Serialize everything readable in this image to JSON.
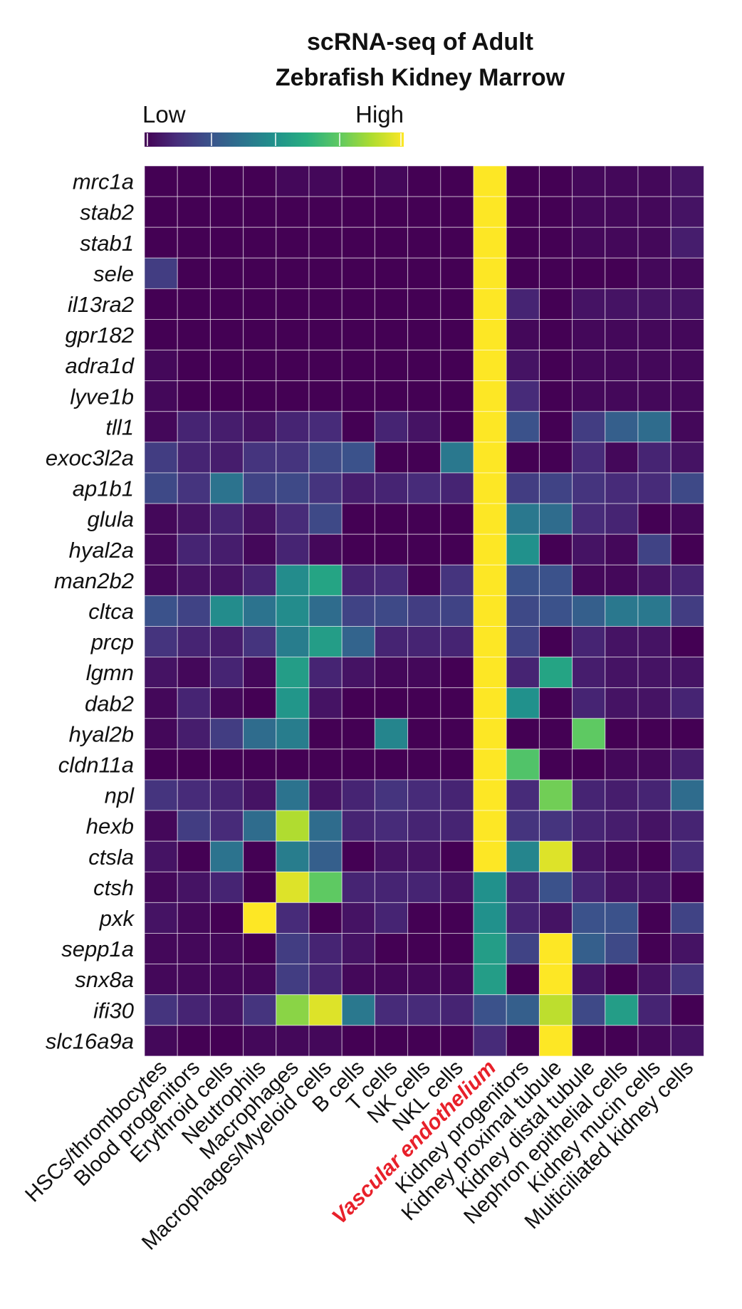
{
  "chart_data": {
    "type": "heatmap",
    "title_lines": [
      "scRNA-seq of Adult",
      "Zebrafish Kidney Marrow"
    ],
    "legend": {
      "low_label": "Low",
      "high_label": "High",
      "colormap": "viridis"
    },
    "highlight_column": "Vascular endothelium",
    "highlight_color": "#e8202a",
    "rows": [
      "mrc1a",
      "stab2",
      "stab1",
      "sele",
      "il13ra2",
      "gpr182",
      "adra1d",
      "lyve1b",
      "tll1",
      "exoc3l2a",
      "ap1b1",
      "glula",
      "hyal2a",
      "man2b2",
      "cltca",
      "prcp",
      "lgmn",
      "dab2",
      "hyal2b",
      "cldn11a",
      "npl",
      "hexb",
      "ctsla",
      "ctsh",
      "pxk",
      "sepp1a",
      "snx8a",
      "ifi30",
      "slc16a9a"
    ],
    "columns": [
      "HSCs/thrombocytes",
      "Blood progenitors",
      "Erythroid cells",
      "Neutrophils",
      "Macrophages",
      "Macrophages/Myeloid cells",
      "B cells",
      "T cells",
      "NK cells",
      "NKL cells",
      "Vascular endothelium",
      "Kidney progenitors",
      "Kidney proximal tubule",
      "Kidney distal tubule",
      "Nephron epithelial cells",
      "Kidney mucin cells",
      "Multiciliated kidney cells"
    ],
    "value_range": [
      0,
      1
    ],
    "values": [
      [
        0.0,
        0.0,
        0.0,
        0.0,
        0.02,
        0.02,
        0.0,
        0.02,
        0.0,
        0.0,
        1.0,
        0.0,
        0.0,
        0.02,
        0.02,
        0.02,
        0.05
      ],
      [
        0.0,
        0.0,
        0.0,
        0.0,
        0.0,
        0.0,
        0.0,
        0.0,
        0.0,
        0.0,
        1.0,
        0.0,
        0.0,
        0.02,
        0.02,
        0.02,
        0.05
      ],
      [
        0.0,
        0.0,
        0.0,
        0.0,
        0.0,
        0.0,
        0.0,
        0.0,
        0.0,
        0.0,
        1.0,
        0.0,
        0.0,
        0.02,
        0.02,
        0.02,
        0.08
      ],
      [
        0.18,
        0.0,
        0.0,
        0.0,
        0.0,
        0.0,
        0.0,
        0.0,
        0.0,
        0.0,
        1.0,
        0.0,
        0.0,
        0.0,
        0.0,
        0.02,
        0.02
      ],
      [
        0.0,
        0.0,
        0.0,
        0.0,
        0.0,
        0.0,
        0.0,
        0.0,
        0.0,
        0.0,
        1.0,
        0.1,
        0.0,
        0.05,
        0.05,
        0.05,
        0.05
      ],
      [
        0.0,
        0.0,
        0.0,
        0.0,
        0.0,
        0.0,
        0.0,
        0.0,
        0.0,
        0.0,
        1.0,
        0.02,
        0.0,
        0.02,
        0.02,
        0.02,
        0.02
      ],
      [
        0.02,
        0.0,
        0.0,
        0.0,
        0.0,
        0.0,
        0.0,
        0.0,
        0.0,
        0.0,
        1.0,
        0.05,
        0.0,
        0.02,
        0.02,
        0.02,
        0.02
      ],
      [
        0.02,
        0.0,
        0.0,
        0.0,
        0.0,
        0.0,
        0.0,
        0.0,
        0.0,
        0.0,
        1.0,
        0.12,
        0.0,
        0.02,
        0.02,
        0.02,
        0.02
      ],
      [
        0.02,
        0.1,
        0.08,
        0.05,
        0.1,
        0.12,
        0.0,
        0.1,
        0.05,
        0.0,
        1.0,
        0.25,
        0.0,
        0.18,
        0.3,
        0.35,
        0.02
      ],
      [
        0.18,
        0.1,
        0.08,
        0.15,
        0.15,
        0.22,
        0.25,
        0.0,
        0.0,
        0.4,
        1.0,
        0.0,
        0.0,
        0.12,
        0.02,
        0.1,
        0.05
      ],
      [
        0.22,
        0.15,
        0.38,
        0.2,
        0.22,
        0.15,
        0.08,
        0.1,
        0.12,
        0.1,
        1.0,
        0.18,
        0.2,
        0.15,
        0.12,
        0.12,
        0.22
      ],
      [
        0.02,
        0.05,
        0.1,
        0.05,
        0.12,
        0.22,
        0.0,
        0.0,
        0.0,
        0.0,
        1.0,
        0.4,
        0.35,
        0.12,
        0.1,
        0.0,
        0.02
      ],
      [
        0.02,
        0.1,
        0.08,
        0.02,
        0.1,
        0.02,
        0.0,
        0.0,
        0.0,
        0.0,
        1.0,
        0.5,
        0.0,
        0.05,
        0.02,
        0.2,
        0.0
      ],
      [
        0.02,
        0.05,
        0.05,
        0.1,
        0.48,
        0.58,
        0.1,
        0.12,
        0.0,
        0.15,
        1.0,
        0.25,
        0.25,
        0.02,
        0.02,
        0.05,
        0.1
      ],
      [
        0.25,
        0.2,
        0.48,
        0.38,
        0.48,
        0.35,
        0.2,
        0.22,
        0.18,
        0.2,
        1.0,
        0.22,
        0.25,
        0.3,
        0.4,
        0.4,
        0.18
      ],
      [
        0.15,
        0.1,
        0.08,
        0.15,
        0.42,
        0.55,
        0.32,
        0.1,
        0.1,
        0.1,
        1.0,
        0.2,
        0.0,
        0.1,
        0.05,
        0.05,
        0.0
      ],
      [
        0.05,
        0.02,
        0.1,
        0.02,
        0.55,
        0.1,
        0.05,
        0.02,
        0.02,
        0.0,
        1.0,
        0.1,
        0.58,
        0.08,
        0.05,
        0.05,
        0.05
      ],
      [
        0.02,
        0.1,
        0.02,
        0.0,
        0.52,
        0.05,
        0.0,
        0.0,
        0.0,
        0.0,
        1.0,
        0.5,
        0.0,
        0.1,
        0.05,
        0.05,
        0.1
      ],
      [
        0.02,
        0.08,
        0.18,
        0.35,
        0.42,
        0.0,
        0.0,
        0.45,
        0.0,
        0.0,
        1.0,
        0.0,
        0.0,
        0.75,
        0.0,
        0.0,
        0.0
      ],
      [
        0.0,
        0.0,
        0.0,
        0.0,
        0.0,
        0.0,
        0.0,
        0.0,
        0.0,
        0.0,
        1.0,
        0.72,
        0.0,
        0.0,
        0.02,
        0.02,
        0.08
      ],
      [
        0.15,
        0.12,
        0.1,
        0.05,
        0.38,
        0.05,
        0.1,
        0.15,
        0.12,
        0.1,
        1.0,
        0.12,
        0.78,
        0.1,
        0.08,
        0.1,
        0.35
      ],
      [
        0.02,
        0.18,
        0.12,
        0.35,
        0.88,
        0.35,
        0.1,
        0.12,
        0.1,
        0.1,
        1.0,
        0.15,
        0.15,
        0.1,
        0.08,
        0.05,
        0.1
      ],
      [
        0.05,
        0.0,
        0.38,
        0.0,
        0.42,
        0.3,
        0.0,
        0.05,
        0.05,
        0.0,
        1.0,
        0.45,
        0.95,
        0.05,
        0.02,
        0.0,
        0.12
      ],
      [
        0.02,
        0.05,
        0.1,
        0.0,
        0.95,
        0.75,
        0.1,
        0.1,
        0.1,
        0.05,
        0.5,
        0.1,
        0.25,
        0.1,
        0.05,
        0.05,
        0.0
      ],
      [
        0.05,
        0.02,
        0.0,
        1.0,
        0.12,
        0.0,
        0.05,
        0.1,
        0.0,
        0.0,
        0.5,
        0.1,
        0.05,
        0.25,
        0.25,
        0.0,
        0.2
      ],
      [
        0.02,
        0.02,
        0.02,
        0.0,
        0.18,
        0.1,
        0.05,
        0.0,
        0.0,
        0.0,
        0.55,
        0.2,
        1.0,
        0.3,
        0.22,
        0.0,
        0.05
      ],
      [
        0.02,
        0.02,
        0.02,
        0.02,
        0.18,
        0.1,
        0.02,
        0.02,
        0.02,
        0.02,
        0.55,
        0.0,
        1.0,
        0.05,
        0.0,
        0.05,
        0.15
      ],
      [
        0.15,
        0.1,
        0.05,
        0.15,
        0.82,
        0.95,
        0.4,
        0.12,
        0.12,
        0.1,
        0.25,
        0.3,
        0.9,
        0.22,
        0.55,
        0.1,
        0.0
      ],
      [
        0.02,
        0.0,
        0.0,
        0.02,
        0.02,
        0.02,
        0.0,
        0.0,
        0.0,
        0.0,
        0.12,
        0.0,
        1.0,
        0.0,
        0.0,
        0.02,
        0.05
      ]
    ]
  }
}
